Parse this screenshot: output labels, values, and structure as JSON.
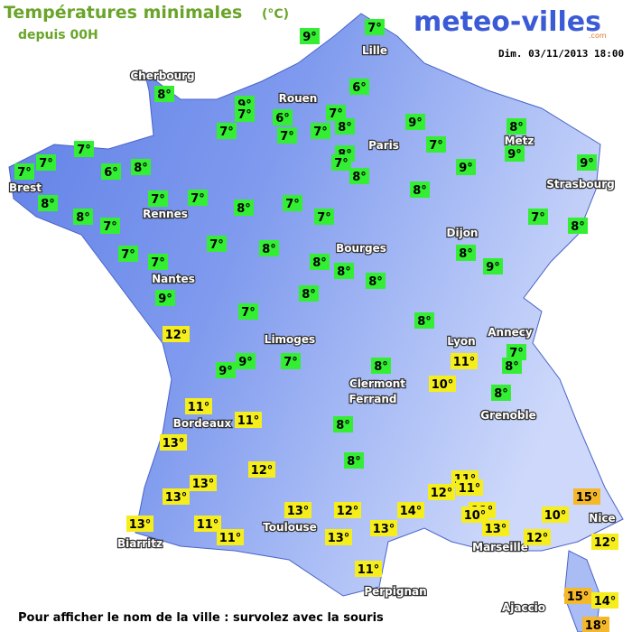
{
  "header": {
    "title": "Températures minimales",
    "unit": "(°C)",
    "subtitle": "depuis 00H",
    "logo": "meteo-villes",
    "logo_suffix": ".com",
    "date": "Dim. 03/11/2013 18:00"
  },
  "cities": [
    "Lille",
    "Cherbourg",
    "Rouen",
    "Paris",
    "Metz",
    "Strasbourg",
    "Brest",
    "Rennes",
    "Dijon",
    "Bourges",
    "Nantes",
    "Limoges",
    "Lyon",
    "Annecy",
    "Clermont",
    "Ferrand",
    "Grenoble",
    "Bordeaux",
    "Toulouse",
    "Biarritz",
    "Marseille",
    "Nice",
    "Perpignan",
    "Ajaccio"
  ],
  "badge_colors": {
    "cold": "#33ee33",
    "mild": "#f5ee1c",
    "warm": "#f5b82a"
  },
  "temperatures": [
    {
      "label": "7°",
      "color": "cold"
    },
    {
      "label": "9°",
      "color": "cold"
    },
    {
      "label": "8°",
      "color": "cold"
    },
    {
      "label": "6°",
      "color": "cold"
    },
    {
      "label": "9°",
      "color": "cold"
    },
    {
      "label": "7°",
      "color": "cold"
    },
    {
      "label": "6°",
      "color": "cold"
    },
    {
      "label": "7°",
      "color": "cold"
    },
    {
      "label": "8°",
      "color": "cold"
    },
    {
      "label": "7°",
      "color": "cold"
    },
    {
      "label": "7°",
      "color": "cold"
    },
    {
      "label": "7°",
      "color": "cold"
    },
    {
      "label": "9°",
      "color": "cold"
    },
    {
      "label": "8°",
      "color": "cold"
    },
    {
      "label": "8°",
      "color": "cold"
    },
    {
      "label": "7°",
      "color": "cold"
    },
    {
      "label": "8°",
      "color": "cold"
    },
    {
      "label": "7°",
      "color": "cold"
    },
    {
      "label": "9°",
      "color": "cold"
    },
    {
      "label": "9°",
      "color": "cold"
    },
    {
      "label": "9°",
      "color": "cold"
    },
    {
      "label": "7°",
      "color": "cold"
    },
    {
      "label": "7°",
      "color": "cold"
    },
    {
      "label": "7°",
      "color": "cold"
    },
    {
      "label": "6°",
      "color": "cold"
    },
    {
      "label": "8°",
      "color": "cold"
    },
    {
      "label": "8°",
      "color": "cold"
    },
    {
      "label": "8°",
      "color": "cold"
    },
    {
      "label": "7°",
      "color": "cold"
    },
    {
      "label": "7°",
      "color": "cold"
    },
    {
      "label": "7°",
      "color": "cold"
    },
    {
      "label": "8°",
      "color": "cold"
    },
    {
      "label": "7°",
      "color": "cold"
    },
    {
      "label": "7°",
      "color": "cold"
    },
    {
      "label": "8°",
      "color": "cold"
    },
    {
      "label": "7°",
      "color": "cold"
    },
    {
      "label": "8°",
      "color": "cold"
    },
    {
      "label": "7°",
      "color": "cold"
    },
    {
      "label": "7°",
      "color": "cold"
    },
    {
      "label": "7°",
      "color": "cold"
    },
    {
      "label": "8°",
      "color": "cold"
    },
    {
      "label": "8°",
      "color": "cold"
    },
    {
      "label": "8°",
      "color": "cold"
    },
    {
      "label": "8°",
      "color": "cold"
    },
    {
      "label": "8°",
      "color": "cold"
    },
    {
      "label": "9°",
      "color": "cold"
    },
    {
      "label": "9°",
      "color": "cold"
    },
    {
      "label": "8°",
      "color": "cold"
    },
    {
      "label": "7°",
      "color": "cold"
    },
    {
      "label": "8°",
      "color": "cold"
    },
    {
      "label": "12°",
      "color": "mild"
    },
    {
      "label": "7°",
      "color": "cold"
    },
    {
      "label": "8°",
      "color": "cold"
    },
    {
      "label": "11°",
      "color": "mild"
    },
    {
      "label": "9°",
      "color": "cold"
    },
    {
      "label": "9°",
      "color": "cold"
    },
    {
      "label": "7°",
      "color": "cold"
    },
    {
      "label": "8°",
      "color": "cold"
    },
    {
      "label": "10°",
      "color": "mild"
    },
    {
      "label": "8°",
      "color": "cold"
    },
    {
      "label": "11°",
      "color": "mild"
    },
    {
      "label": "11°",
      "color": "mild"
    },
    {
      "label": "8°",
      "color": "cold"
    },
    {
      "label": "13°",
      "color": "mild"
    },
    {
      "label": "8°",
      "color": "cold"
    },
    {
      "label": "12°",
      "color": "mild"
    },
    {
      "label": "13°",
      "color": "mild"
    },
    {
      "label": "13°",
      "color": "mild"
    },
    {
      "label": "11°",
      "color": "mild"
    },
    {
      "label": "12°",
      "color": "mild"
    },
    {
      "label": "11°",
      "color": "mild"
    },
    {
      "label": "13°",
      "color": "mild"
    },
    {
      "label": "12°",
      "color": "mild"
    },
    {
      "label": "14°",
      "color": "mild"
    },
    {
      "label": "11°",
      "color": "mild"
    },
    {
      "label": "10°",
      "color": "mild"
    },
    {
      "label": "10°",
      "color": "mild"
    },
    {
      "label": "15°",
      "color": "warm"
    },
    {
      "label": "13°",
      "color": "mild"
    },
    {
      "label": "11°",
      "color": "mild"
    },
    {
      "label": "11°",
      "color": "mild"
    },
    {
      "label": "13°",
      "color": "mild"
    },
    {
      "label": "13°",
      "color": "mild"
    },
    {
      "label": "12°",
      "color": "mild"
    },
    {
      "label": "12°",
      "color": "mild"
    },
    {
      "label": "13°",
      "color": "mild"
    },
    {
      "label": "11°",
      "color": "mild"
    },
    {
      "label": "15°",
      "color": "warm"
    },
    {
      "label": "14°",
      "color": "mild"
    },
    {
      "label": "18°",
      "color": "warm"
    }
  ],
  "footer": "Pour afficher le nom de la ville : survolez avec la souris"
}
